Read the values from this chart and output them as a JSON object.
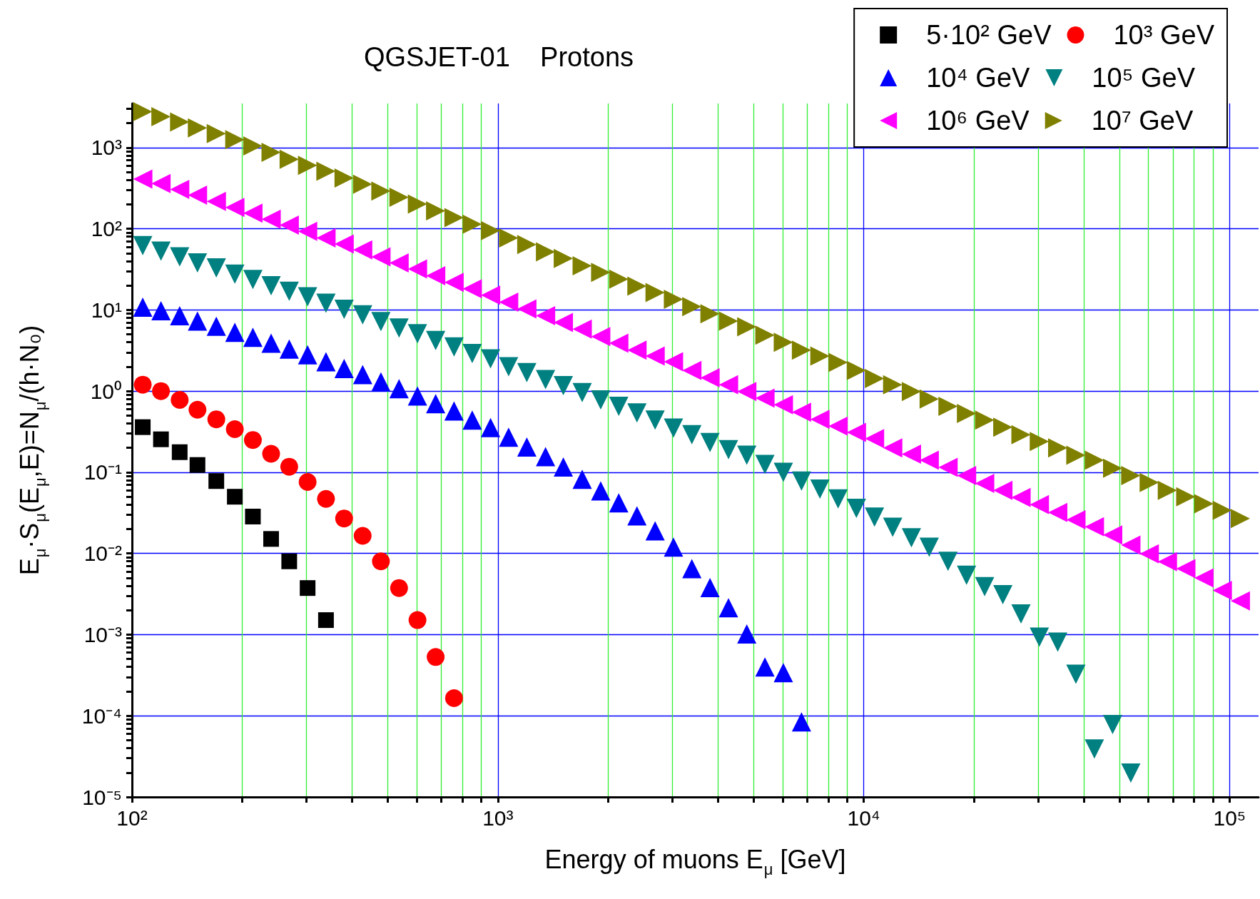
{
  "chart_data": {
    "type": "scatter",
    "title": "QGSJET-01    Protons",
    "xlabel": "Energy of muons E$_{μ}$ [GeV]",
    "ylabel": "E$_{μ}$·S$_{μ}$(E$_{μ}$,E)=N$_{μ}$/(h·N₀)",
    "log": "xy",
    "grid": true,
    "legend": "top right",
    "xlim": [
      100,
      120000
    ],
    "ylim": [
      1e-05,
      3500
    ],
    "xticks": [
      {
        "value": 100,
        "label": "10²"
      },
      {
        "value": 200,
        "label": null
      },
      {
        "value": 300,
        "label": null
      },
      {
        "value": 400,
        "label": null
      },
      {
        "value": 500,
        "label": null
      },
      {
        "value": 600,
        "label": null
      },
      {
        "value": 700,
        "label": null
      },
      {
        "value": 800,
        "label": null
      },
      {
        "value": 900,
        "label": null
      },
      {
        "value": 1000,
        "label": "10³"
      },
      {
        "value": 2000,
        "label": null
      },
      {
        "value": 3000,
        "label": null
      },
      {
        "value": 4000,
        "label": null
      },
      {
        "value": 5000,
        "label": null
      },
      {
        "value": 6000,
        "label": null
      },
      {
        "value": 7000,
        "label": null
      },
      {
        "value": 8000,
        "label": null
      },
      {
        "value": 9000,
        "label": null
      },
      {
        "value": 10000,
        "label": "10⁴"
      },
      {
        "value": 20000,
        "label": null
      },
      {
        "value": 30000,
        "label": null
      },
      {
        "value": 40000,
        "label": null
      },
      {
        "value": 50000,
        "label": null
      },
      {
        "value": 60000,
        "label": null
      },
      {
        "value": 70000,
        "label": null
      },
      {
        "value": 80000,
        "label": null
      },
      {
        "value": 90000,
        "label": null
      },
      {
        "value": 100000,
        "label": "10⁵"
      }
    ],
    "yticks": [
      {
        "value": 1e-05,
        "label": "10⁻⁵"
      },
      {
        "value": 2e-05,
        "label": null
      },
      {
        "value": 3e-05,
        "label": null
      },
      {
        "value": 4e-05,
        "label": null
      },
      {
        "value": 5e-05,
        "label": null
      },
      {
        "value": 6e-05,
        "label": null
      },
      {
        "value": 7e-05,
        "label": null
      },
      {
        "value": 8e-05,
        "label": null
      },
      {
        "value": 9e-05,
        "label": null
      },
      {
        "value": 0.0001,
        "label": "10⁻⁴"
      },
      {
        "value": 0.0002,
        "label": null
      },
      {
        "value": 0.0003,
        "label": null
      },
      {
        "value": 0.0004,
        "label": null
      },
      {
        "value": 0.0005,
        "label": null
      },
      {
        "value": 0.0006,
        "label": null
      },
      {
        "value": 0.0007,
        "label": null
      },
      {
        "value": 0.0008,
        "label": null
      },
      {
        "value": 0.0009,
        "label": null
      },
      {
        "value": 0.001,
        "label": "10⁻³"
      },
      {
        "value": 0.002,
        "label": null
      },
      {
        "value": 0.003,
        "label": null
      },
      {
        "value": 0.004,
        "label": null
      },
      {
        "value": 0.005,
        "label": null
      },
      {
        "value": 0.006,
        "label": null
      },
      {
        "value": 0.007,
        "label": null
      },
      {
        "value": 0.008,
        "label": null
      },
      {
        "value": 0.009,
        "label": null
      },
      {
        "value": 0.01,
        "label": "10⁻²"
      },
      {
        "value": 0.02,
        "label": null
      },
      {
        "value": 0.03,
        "label": null
      },
      {
        "value": 0.04,
        "label": null
      },
      {
        "value": 0.05,
        "label": null
      },
      {
        "value": 0.06,
        "label": null
      },
      {
        "value": 0.07,
        "label": null
      },
      {
        "value": 0.08,
        "label": null
      },
      {
        "value": 0.09,
        "label": null
      },
      {
        "value": 0.1,
        "label": "10⁻¹"
      },
      {
        "value": 0.2,
        "label": null
      },
      {
        "value": 0.3,
        "label": null
      },
      {
        "value": 0.4,
        "label": null
      },
      {
        "value": 0.5,
        "label": null
      },
      {
        "value": 0.6,
        "label": null
      },
      {
        "value": 0.7,
        "label": null
      },
      {
        "value": 0.8,
        "label": null
      },
      {
        "value": 0.9,
        "label": null
      },
      {
        "value": 1,
        "label": "10⁰"
      },
      {
        "value": 2,
        "label": null
      },
      {
        "value": 3,
        "label": null
      },
      {
        "value": 4,
        "label": null
      },
      {
        "value": 5,
        "label": null
      },
      {
        "value": 6,
        "label": null
      },
      {
        "value": 7,
        "label": null
      },
      {
        "value": 8,
        "label": null
      },
      {
        "value": 9,
        "label": null
      },
      {
        "value": 10,
        "label": "10¹"
      },
      {
        "value": 20,
        "label": null
      },
      {
        "value": 30,
        "label": null
      },
      {
        "value": 40,
        "label": null
      },
      {
        "value": 50,
        "label": null
      },
      {
        "value": 60,
        "label": null
      },
      {
        "value": 70,
        "label": null
      },
      {
        "value": 80,
        "label": null
      },
      {
        "value": 90,
        "label": null
      },
      {
        "value": 100,
        "label": "10²"
      },
      {
        "value": 200,
        "label": null
      },
      {
        "value": 300,
        "label": null
      },
      {
        "value": 400,
        "label": null
      },
      {
        "value": 500,
        "label": null
      },
      {
        "value": 600,
        "label": null
      },
      {
        "value": 700,
        "label": null
      },
      {
        "value": 800,
        "label": null
      },
      {
        "value": 900,
        "label": null
      },
      {
        "value": 1000,
        "label": "10³"
      },
      {
        "value": 2000,
        "label": null
      },
      {
        "value": 3000,
        "label": null
      }
    ],
    "series": [
      {
        "name": "5·10² GeV",
        "color": "#000000",
        "marker": "square",
        "x": [
          107,
          120,
          135,
          151,
          170,
          191,
          214,
          240,
          269,
          302,
          339
        ],
        "values": [
          0.36,
          0.255,
          0.177,
          0.123,
          0.078,
          0.05,
          0.0285,
          0.0151,
          0.008,
          0.00375,
          0.00151
        ]
      },
      {
        "name": "10³ GeV",
        "color": "#ff0000",
        "marker": "circle",
        "x": [
          107,
          120,
          135,
          151,
          170,
          191,
          214,
          240,
          269,
          302,
          339,
          380,
          427,
          479,
          537,
          603,
          676,
          759
        ],
        "values": [
          1.2,
          1.0,
          0.78,
          0.59,
          0.45,
          0.34,
          0.25,
          0.169,
          0.117,
          0.076,
          0.047,
          0.027,
          0.0165,
          0.008,
          0.00375,
          0.00151,
          0.00053,
          0.000165
        ]
      },
      {
        "name": "10⁴ GeV",
        "color": "#0000ff",
        "marker": "triangle",
        "x": [
          107,
          120,
          135,
          151,
          170,
          191,
          214,
          240,
          269,
          302,
          339,
          380,
          427,
          479,
          537,
          603,
          676,
          759,
          851,
          955,
          1070,
          1200,
          1350,
          1510,
          1700,
          1910,
          2140,
          2400,
          2690,
          3020,
          3390,
          3800,
          4270,
          4790,
          5370,
          6030,
          6760
        ],
        "values": [
          10.8,
          9.8,
          8.5,
          7.3,
          6.3,
          5.3,
          4.6,
          3.9,
          3.3,
          2.8,
          2.3,
          1.9,
          1.6,
          1.3,
          1.07,
          0.87,
          0.7,
          0.57,
          0.44,
          0.355,
          0.27,
          0.205,
          0.156,
          0.116,
          0.082,
          0.059,
          0.042,
          0.029,
          0.019,
          0.012,
          0.0065,
          0.0038,
          0.00215,
          0.00102,
          0.0004,
          0.00034,
          8.4e-05
        ]
      },
      {
        "name": "10⁵ GeV",
        "color": "#008080",
        "marker": "triangle-down",
        "x": [
          107,
          120,
          135,
          151,
          170,
          191,
          214,
          240,
          269,
          302,
          339,
          380,
          427,
          479,
          537,
          603,
          676,
          759,
          851,
          955,
          1070,
          1200,
          1350,
          1510,
          1700,
          1910,
          2140,
          2400,
          2690,
          3020,
          3390,
          3800,
          4270,
          4790,
          5370,
          6030,
          6760,
          7590,
          8510,
          9550,
          10700,
          12000,
          13500,
          15100,
          17000,
          19100,
          21400,
          24000,
          26900,
          30200,
          33900,
          38000,
          42700,
          47900,
          53700
        ],
        "values": [
          62,
          53,
          45,
          38,
          33,
          27.6,
          23.7,
          19.9,
          17,
          14.5,
          12.1,
          10.2,
          8.7,
          7.2,
          6,
          5.1,
          4.2,
          3.5,
          2.9,
          2.5,
          2,
          1.69,
          1.39,
          1.17,
          0.96,
          0.78,
          0.65,
          0.54,
          0.44,
          0.35,
          0.29,
          0.233,
          0.19,
          0.162,
          0.125,
          0.1,
          0.078,
          0.062,
          0.047,
          0.036,
          0.028,
          0.021,
          0.0156,
          0.0119,
          0.008,
          0.0054,
          0.0039,
          0.0031,
          0.0018,
          0.00093,
          0.00081,
          0.000325,
          3.9e-05,
          7.8e-05,
          1.97e-05
        ]
      },
      {
        "name": "10⁶ GeV",
        "color": "#ff00ff",
        "marker": "triangle-left",
        "x": [
          107,
          120,
          135,
          151,
          170,
          191,
          214,
          240,
          269,
          302,
          339,
          380,
          427,
          479,
          537,
          603,
          676,
          759,
          851,
          955,
          1070,
          1200,
          1350,
          1510,
          1700,
          1910,
          2140,
          2400,
          2690,
          3020,
          3390,
          3800,
          4270,
          4790,
          5370,
          6030,
          6760,
          7590,
          8510,
          9550,
          10700,
          12000,
          13500,
          15100,
          17000,
          19100,
          21400,
          24000,
          26900,
          30200,
          33900,
          38000,
          42700,
          47900,
          53700,
          60300,
          67600,
          75900,
          85100,
          95500,
          107000
        ],
        "values": [
          410,
          361,
          306,
          260,
          218,
          183,
          156,
          131,
          111,
          93,
          77,
          65,
          55,
          45,
          38,
          32,
          26.4,
          21.9,
          18.2,
          15.2,
          12.5,
          10.3,
          8.5,
          7,
          5.8,
          4.7,
          3.9,
          3.2,
          2.7,
          2.3,
          1.8,
          1.46,
          1.2,
          0.99,
          0.82,
          0.68,
          0.55,
          0.45,
          0.37,
          0.31,
          0.26,
          0.2,
          0.167,
          0.141,
          0.115,
          0.091,
          0.073,
          0.06,
          0.049,
          0.04,
          0.032,
          0.026,
          0.0213,
          0.0169,
          0.0127,
          0.0099,
          0.0079,
          0.0065,
          0.005,
          0.0035,
          0.0026
        ]
      },
      {
        "name": "10⁷ GeV",
        "color": "#808000",
        "marker": "triangle-right",
        "x": [
          107,
          120,
          135,
          151,
          170,
          191,
          214,
          240,
          269,
          302,
          339,
          380,
          427,
          479,
          537,
          603,
          676,
          759,
          851,
          955,
          1070,
          1200,
          1350,
          1510,
          1700,
          1910,
          2140,
          2400,
          2690,
          3020,
          3390,
          3800,
          4270,
          4790,
          5370,
          6030,
          6760,
          7590,
          8510,
          9550,
          10700,
          12000,
          13500,
          15100,
          17000,
          19100,
          21400,
          24000,
          26900,
          30200,
          33900,
          38000,
          42700,
          47900,
          53700,
          60300,
          67600,
          75900,
          85100,
          95500,
          107000
        ],
        "values": [
          2770,
          2410,
          2070,
          1750,
          1490,
          1250,
          1050,
          873,
          719,
          604,
          512,
          422,
          354,
          292,
          245,
          202,
          166,
          137,
          114,
          95,
          77,
          64,
          52,
          43,
          35,
          29,
          24,
          19.7,
          16.4,
          13.5,
          11,
          9,
          7.3,
          6.2,
          4.9,
          4,
          3.2,
          2.7,
          2.26,
          1.8,
          1.43,
          1.2,
          0.99,
          0.8,
          0.65,
          0.53,
          0.44,
          0.36,
          0.29,
          0.24,
          0.2,
          0.162,
          0.141,
          0.112,
          0.091,
          0.075,
          0.06,
          0.05,
          0.041,
          0.034,
          0.027
        ]
      }
    ]
  }
}
